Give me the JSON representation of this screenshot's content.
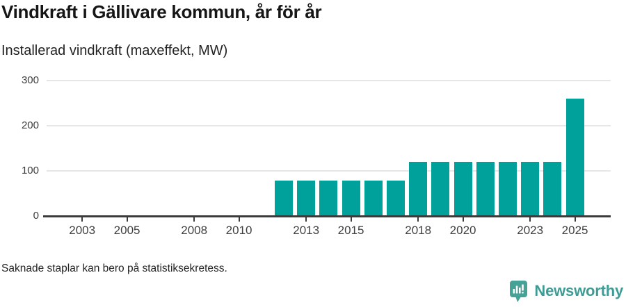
{
  "header": {
    "title": "Vindkraft i Gällivare kommun, år för år",
    "subtitle": "Installerad vindkraft (maxeffekt, MW)"
  },
  "chart_data": {
    "type": "bar",
    "title": "Vindkraft i Gällivare kommun, år för år",
    "subtitle": "Installerad vindkraft (maxeffekt, MW)",
    "xlabel": "",
    "ylabel": "MW",
    "x": [
      2012,
      2013,
      2014,
      2015,
      2016,
      2017,
      2018,
      2019,
      2020,
      2021,
      2022,
      2023,
      2024,
      2025
    ],
    "values": [
      78,
      78,
      78,
      78,
      78,
      78,
      120,
      120,
      120,
      120,
      120,
      120,
      120,
      260
    ],
    "xticks": [
      2003,
      2005,
      2008,
      2010,
      2013,
      2015,
      2018,
      2020,
      2023,
      2025
    ],
    "yticks": [
      0,
      100,
      200,
      300
    ],
    "ylim": [
      0,
      300
    ],
    "xlim": [
      2001.4,
      2026.6
    ],
    "grid": "horizontal",
    "legend": "none",
    "bar_color": "#00a19a",
    "grid_color": "#e6e6e6",
    "axis_color": "#3a3a3a"
  },
  "footnote": "Saknade staplar kan bero på statistiksekretess.",
  "logo": {
    "text": "Newsworthy",
    "text_color": "#3d9c94",
    "icon_color": "#46a197",
    "icon": "newsworthy-chart-bubble-icon"
  }
}
